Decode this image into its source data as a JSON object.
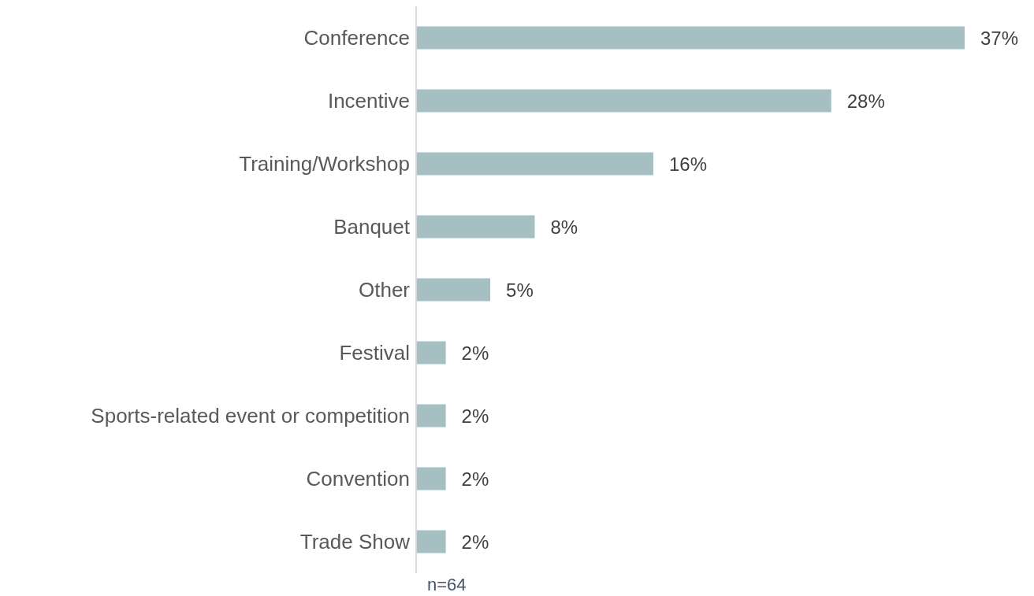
{
  "chart_data": {
    "type": "bar",
    "orientation": "horizontal",
    "categories": [
      "Conference",
      "Incentive",
      "Training/Workshop",
      "Banquet",
      "Other",
      "Festival",
      "Sports-related event or competition",
      "Convention",
      "Trade Show"
    ],
    "values": [
      37,
      28,
      16,
      8,
      5,
      2,
      2,
      2,
      2
    ],
    "value_labels": [
      "37%",
      "28%",
      "16%",
      "8%",
      "5%",
      "2%",
      "2%",
      "2%",
      "2%"
    ],
    "color": "#a5bfc3",
    "annotations": [
      "n=64"
    ]
  }
}
